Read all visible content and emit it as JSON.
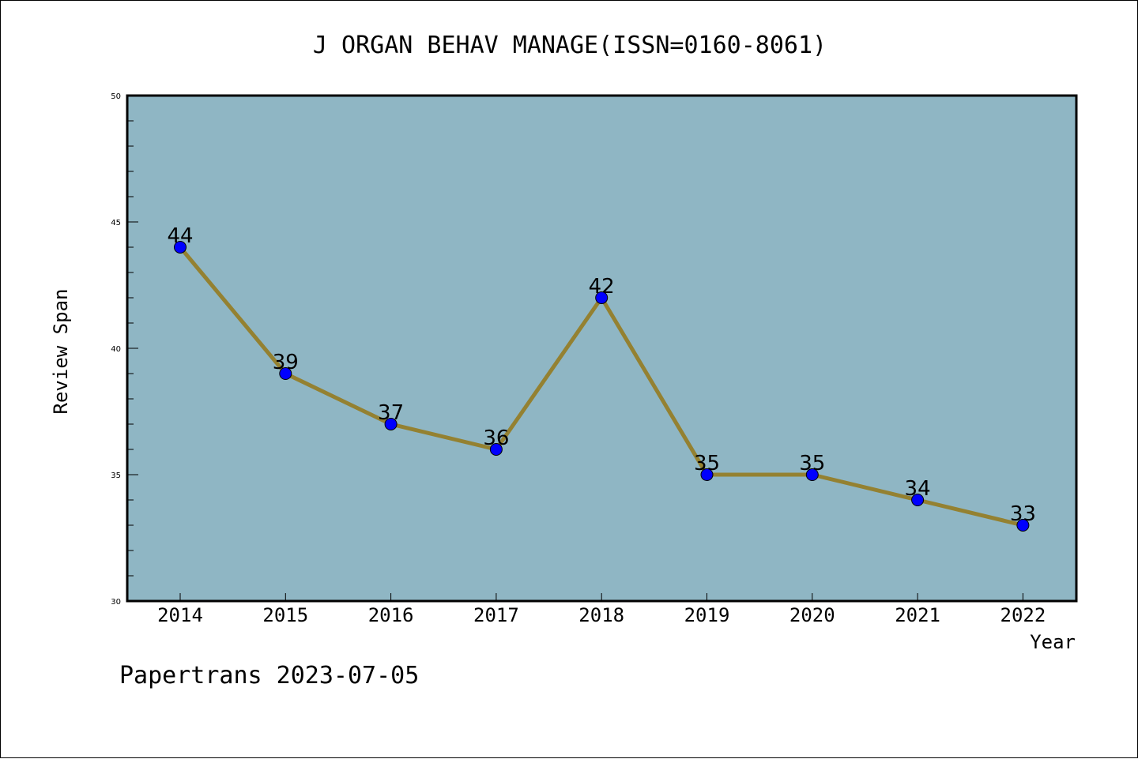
{
  "chart_data": {
    "type": "line",
    "title": "J ORGAN BEHAV MANAGE(ISSN=0160-8061)",
    "xlabel": "Year",
    "ylabel": "Review Span",
    "categories": [
      "2014",
      "2015",
      "2016",
      "2017",
      "2018",
      "2019",
      "2020",
      "2021",
      "2022"
    ],
    "series": [
      {
        "values": [
          44,
          39,
          37,
          36,
          42,
          35,
          35,
          34,
          33
        ]
      }
    ],
    "ylim": [
      30,
      50
    ],
    "yticks": [
      30,
      35,
      40,
      45,
      50
    ],
    "data_labels": [
      "44",
      "39",
      "37",
      "36",
      "42",
      "35",
      "35",
      "34",
      "33"
    ],
    "grid": false,
    "colors": {
      "plot_background": "#8fb6c4",
      "line": "#948131",
      "marker": "#0000ff"
    }
  },
  "footer": "Papertrans 2023-07-05"
}
